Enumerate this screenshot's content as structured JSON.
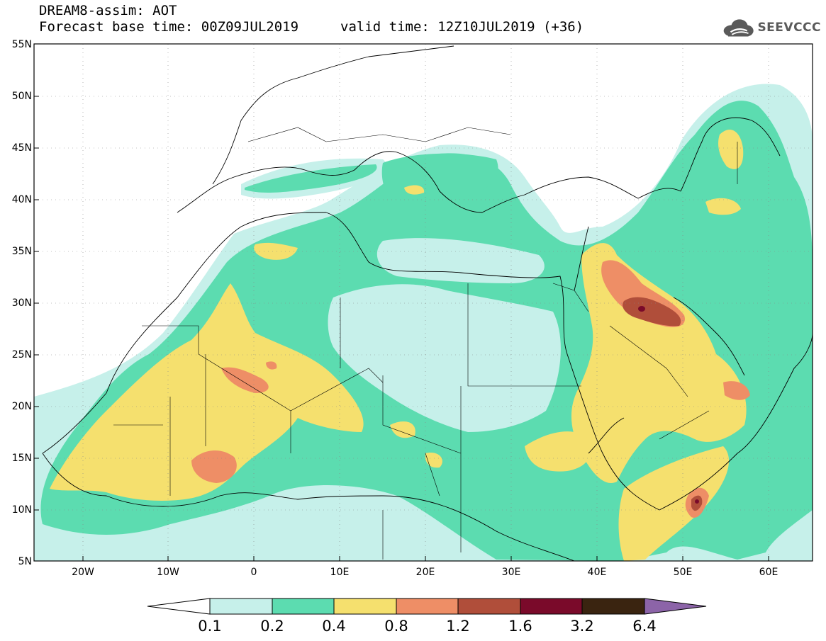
{
  "header": {
    "model_title": "DREAM8-assim: AOT",
    "base_time": "Forecast base time: 00Z09JUL2019",
    "valid_time": "valid time: 12Z10JUL2019 (+36)",
    "logo_text": "SEEVCCC"
  },
  "axes": {
    "lat_labels": [
      "55N",
      "50N",
      "45N",
      "40N",
      "35N",
      "30N",
      "25N",
      "20N",
      "15N",
      "10N",
      "5N"
    ],
    "lon_labels": [
      "20W",
      "10W",
      "0",
      "10E",
      "20E",
      "30E",
      "40E",
      "50E",
      "60E"
    ]
  },
  "colorbar": {
    "levels": [
      "0.1",
      "0.2",
      "0.4",
      "0.8",
      "1.2",
      "1.6",
      "3.2",
      "6.4"
    ],
    "colors": [
      "#ffffff",
      "#c6f0ea",
      "#5cdcb0",
      "#f5e06e",
      "#ee8e66",
      "#b04e3a",
      "#7a0a2a",
      "#3a2410",
      "#8c64a8"
    ]
  },
  "map_colors": {
    "c1": "#c6f0ea",
    "c2": "#5cdcb0",
    "c3": "#f5e06e",
    "c4": "#ee8e66",
    "c5": "#b04e3a",
    "c6": "#7a0a2a"
  }
}
